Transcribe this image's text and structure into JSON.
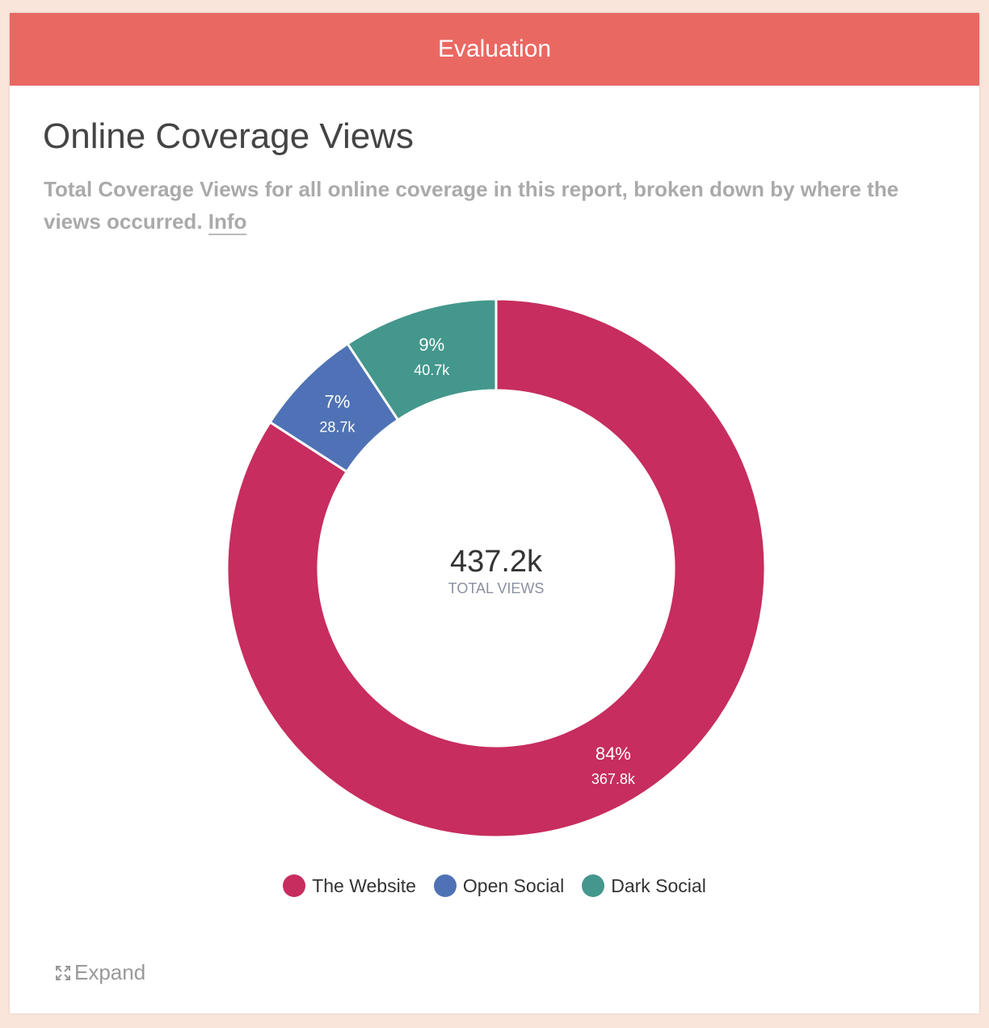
{
  "header": {
    "title": "Evaluation"
  },
  "card": {
    "title": "Online Coverage Views",
    "description": "Total Coverage Views for all online coverage in this report, broken down by where the views occurred.",
    "info_link": "Info",
    "expand_label": "Expand"
  },
  "chart_data": {
    "type": "pie",
    "subtype": "donut",
    "title": "Online Coverage Views",
    "center_value": "437.2k",
    "center_label": "TOTAL VIEWS",
    "legend_position": "bottom",
    "slices": [
      {
        "name": "The Website",
        "value": 367.8,
        "value_label": "367.8k",
        "percent_label": "84%",
        "color": "#c72d5e"
      },
      {
        "name": "Open Social",
        "value": 28.7,
        "value_label": "28.7k",
        "percent_label": "7%",
        "color": "#4e72b5"
      },
      {
        "name": "Dark Social",
        "value": 40.7,
        "value_label": "40.7k",
        "percent_label": "9%",
        "color": "#44978c"
      }
    ]
  }
}
